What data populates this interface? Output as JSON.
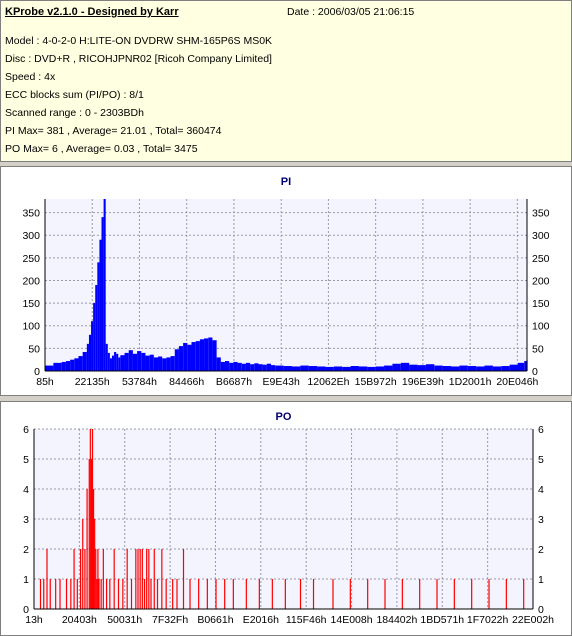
{
  "info": {
    "title": "KProbe v2.1.0 - Designed by Karr",
    "date": "Date : 2006/03/05 21:06:15",
    "lines": [
      "Model : 4-0-2-0 H:LITE-ON DVDRW SHM-165P6S MS0K",
      "Disc : DVD+R , RICOHJPNR02 [Ricoh Company Limited]",
      "Speed : 4x",
      "ECC blocks sum (PI/PO) : 8/1",
      "Scanned range : 0 - 2303BDh",
      "PI Max= 381 , Average= 21.01 , Total= 360474",
      "PO Max= 6 , Average= 0.03 , Total= 3475"
    ]
  },
  "chart_data": [
    {
      "type": "area",
      "title": "PI",
      "color": "#0000ff",
      "ylim": [
        0,
        380
      ],
      "yticks": [
        0,
        50,
        100,
        150,
        200,
        250,
        300,
        350
      ],
      "xlim": [
        0,
        2303
      ],
      "xtick_labels": [
        "85h",
        "22135h",
        "53784h",
        "84466h",
        "B6687h",
        "E9E43h",
        "12062Eh",
        "15B972h",
        "196E39h",
        "1D2001h",
        "20E046h"
      ],
      "grid": true,
      "x": [
        0,
        40,
        80,
        100,
        120,
        140,
        160,
        180,
        200,
        210,
        220,
        230,
        240,
        250,
        260,
        270,
        280,
        290,
        300,
        310,
        320,
        330,
        340,
        350,
        360,
        380,
        400,
        420,
        440,
        460,
        480,
        500,
        520,
        540,
        560,
        580,
        600,
        620,
        640,
        660,
        680,
        700,
        720,
        740,
        760,
        780,
        800,
        820,
        840,
        860,
        880,
        900,
        920,
        940,
        960,
        980,
        1000,
        1020,
        1040,
        1060,
        1080,
        1100,
        1140,
        1180,
        1220,
        1260,
        1300,
        1340,
        1380,
        1420,
        1460,
        1500,
        1540,
        1580,
        1620,
        1660,
        1700,
        1740,
        1780,
        1820,
        1860,
        1900,
        1940,
        1980,
        2020,
        2060,
        2100,
        2140,
        2180,
        2220,
        2260,
        2290,
        2303
      ],
      "values": [
        12,
        18,
        20,
        22,
        25,
        28,
        33,
        42,
        60,
        80,
        110,
        150,
        190,
        240,
        290,
        340,
        380,
        60,
        40,
        28,
        34,
        42,
        38,
        30,
        35,
        40,
        46,
        38,
        44,
        40,
        34,
        36,
        30,
        32,
        28,
        30,
        33,
        48,
        55,
        62,
        58,
        64,
        66,
        70,
        72,
        74,
        68,
        30,
        20,
        22,
        18,
        20,
        18,
        16,
        18,
        15,
        17,
        15,
        14,
        16,
        13,
        12,
        11,
        10,
        12,
        11,
        10,
        9,
        10,
        9,
        11,
        10,
        9,
        10,
        12,
        16,
        18,
        14,
        13,
        15,
        12,
        11,
        10,
        12,
        11,
        10,
        12,
        10,
        11,
        14,
        18,
        22,
        25
      ]
    },
    {
      "type": "bar",
      "title": "PO",
      "color": "#ff0000",
      "ylim": [
        0,
        6
      ],
      "yticks": [
        0,
        1,
        2,
        3,
        4,
        5,
        6
      ],
      "xlim": [
        0,
        2303
      ],
      "xtick_labels": [
        "13h",
        "20403h",
        "50031h",
        "7F32Fh",
        "B0661h",
        "E2016h",
        "115F46h",
        "14E008h",
        "184402h",
        "1BD571h",
        "1F7022h",
        "22E002h"
      ],
      "grid": true,
      "x": [
        30,
        45,
        60,
        75,
        100,
        120,
        150,
        170,
        185,
        200,
        215,
        225,
        235,
        245,
        255,
        260,
        265,
        270,
        275,
        280,
        285,
        290,
        295,
        300,
        310,
        320,
        335,
        350,
        370,
        390,
        410,
        430,
        450,
        470,
        480,
        490,
        500,
        510,
        520,
        530,
        540,
        555,
        570,
        590,
        610,
        640,
        660,
        690,
        720,
        760,
        800,
        840,
        880,
        920,
        980,
        1040,
        1100,
        1160,
        1230,
        1290,
        1380,
        1460,
        1540,
        1620,
        1700,
        1780,
        1860,
        1940,
        2020,
        2100,
        2180,
        2260
      ],
      "values": [
        1,
        1,
        2,
        1,
        1,
        1,
        1,
        1,
        2,
        1,
        2,
        3,
        2,
        4,
        5,
        6,
        5,
        6,
        4,
        3,
        2,
        1,
        2,
        1,
        1,
        2,
        1,
        1,
        2,
        1,
        1,
        2,
        1,
        2,
        2,
        2,
        2,
        1,
        2,
        2,
        1,
        2,
        1,
        2,
        1,
        1,
        1,
        2,
        1,
        1,
        1,
        1,
        1,
        1,
        1,
        1,
        1,
        1,
        1,
        1,
        1,
        1,
        1,
        1,
        1,
        1,
        1,
        1,
        1,
        1,
        1,
        1
      ]
    }
  ]
}
